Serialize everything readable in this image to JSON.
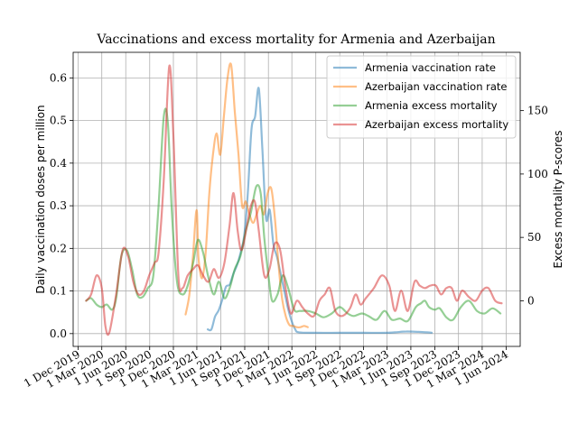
{
  "chart_data": {
    "type": "line",
    "title": "Vaccinations and excess mortality for Armenia and Azerbaijan",
    "ylabel": "Daily vaccination doses per million",
    "y2label": "Excess mortality P-scores",
    "xlim": [
      "2019-11-12",
      "2024-07-25"
    ],
    "ylim": [
      -0.03,
      0.66
    ],
    "y2lim": [
      -36,
      196
    ],
    "grid": true,
    "legend_position": "top-right",
    "x_ticks": [
      "2019-12-01",
      "2020-03-01",
      "2020-06-01",
      "2020-09-01",
      "2020-12-01",
      "2021-03-01",
      "2021-06-01",
      "2021-09-01",
      "2021-12-01",
      "2022-03-01",
      "2022-06-01",
      "2022-09-01",
      "2022-12-01",
      "2023-03-01",
      "2023-06-01",
      "2023-09-01",
      "2023-12-01",
      "2024-03-01",
      "2024-06-01"
    ],
    "x_tick_labels": [
      "1 Dec 2019",
      "1 Mar 2020",
      "1 Jun 2020",
      "1 Sep 2020",
      "1 Dec 2020",
      "1 Mar 2021",
      "1 Jun 2021",
      "1 Sep 2021",
      "1 Dec 2021",
      "1 Mar 2022",
      "1 Jun 2022",
      "1 Sep 2022",
      "1 Dec 2022",
      "1 Mar 2023",
      "1 Jun 2023",
      "1 Sep 2023",
      "1 Dec 2023",
      "1 Mar 2024",
      "1 Jun 2024"
    ],
    "y_ticks": [
      0.0,
      0.1,
      0.2,
      0.3,
      0.4,
      0.5,
      0.6
    ],
    "y_tick_labels": [
      "0.0",
      "0.1",
      "0.2",
      "0.3",
      "0.4",
      "0.5",
      "0.6"
    ],
    "y2_ticks": [
      0,
      50,
      100,
      150
    ],
    "y2_tick_labels": [
      "0",
      "50",
      "100",
      "150"
    ],
    "series": [
      {
        "name": "Armenia vaccination rate",
        "color": "#1f77b4",
        "axis": "left",
        "points": [
          [
            "2021-04-12",
            0.01
          ],
          [
            "2021-04-26",
            0.01
          ],
          [
            "2021-05-10",
            0.04
          ],
          [
            "2021-05-24",
            0.055
          ],
          [
            "2021-06-07",
            0.08
          ],
          [
            "2021-06-21",
            0.11
          ],
          [
            "2021-07-05",
            0.115
          ],
          [
            "2021-07-19",
            0.14
          ],
          [
            "2021-08-02",
            0.16
          ],
          [
            "2021-08-16",
            0.19
          ],
          [
            "2021-08-30",
            0.23
          ],
          [
            "2021-09-13",
            0.33
          ],
          [
            "2021-09-27",
            0.48
          ],
          [
            "2021-10-11",
            0.51
          ],
          [
            "2021-10-25",
            0.575
          ],
          [
            "2021-11-08",
            0.43
          ],
          [
            "2021-11-22",
            0.27
          ],
          [
            "2021-12-06",
            0.29
          ],
          [
            "2021-12-20",
            0.21
          ],
          [
            "2022-01-03",
            0.18
          ],
          [
            "2022-01-17",
            0.14
          ],
          [
            "2022-01-31",
            0.1
          ],
          [
            "2022-02-14",
            0.06
          ],
          [
            "2022-02-28",
            0.03
          ],
          [
            "2022-03-14",
            0.01
          ],
          [
            "2022-03-28",
            0.003
          ],
          [
            "2022-06-01",
            0.002
          ],
          [
            "2022-09-01",
            0.002
          ],
          [
            "2022-12-01",
            0.002
          ],
          [
            "2023-03-01",
            0.002
          ],
          [
            "2023-04-01",
            0.003
          ],
          [
            "2023-05-15",
            0.005
          ],
          [
            "2023-07-01",
            0.004
          ],
          [
            "2023-08-01",
            0.003
          ],
          [
            "2023-08-20",
            0.002
          ]
        ]
      },
      {
        "name": "Azerbaijan vaccination rate",
        "color": "#ff7f0e",
        "axis": "left",
        "points": [
          [
            "2021-01-17",
            0.045
          ],
          [
            "2021-01-31",
            0.09
          ],
          [
            "2021-02-14",
            0.18
          ],
          [
            "2021-02-28",
            0.29
          ],
          [
            "2021-03-07",
            0.18
          ],
          [
            "2021-03-21",
            0.13
          ],
          [
            "2021-04-04",
            0.19
          ],
          [
            "2021-04-18",
            0.33
          ],
          [
            "2021-05-02",
            0.42
          ],
          [
            "2021-05-16",
            0.47
          ],
          [
            "2021-05-30",
            0.42
          ],
          [
            "2021-06-13",
            0.51
          ],
          [
            "2021-06-27",
            0.6
          ],
          [
            "2021-07-11",
            0.63
          ],
          [
            "2021-07-25",
            0.52
          ],
          [
            "2021-08-08",
            0.42
          ],
          [
            "2021-08-22",
            0.3
          ],
          [
            "2021-09-05",
            0.31
          ],
          [
            "2021-09-19",
            0.28
          ],
          [
            "2021-10-03",
            0.26
          ],
          [
            "2021-10-17",
            0.28
          ],
          [
            "2021-10-31",
            0.3
          ],
          [
            "2021-11-14",
            0.28
          ],
          [
            "2021-11-28",
            0.33
          ],
          [
            "2021-12-12",
            0.34
          ],
          [
            "2021-12-26",
            0.27
          ],
          [
            "2022-01-09",
            0.16
          ],
          [
            "2022-01-23",
            0.08
          ],
          [
            "2022-02-06",
            0.04
          ],
          [
            "2022-02-20",
            0.02
          ],
          [
            "2022-03-06",
            0.018
          ],
          [
            "2022-03-20",
            0.015
          ],
          [
            "2022-04-03",
            0.015
          ],
          [
            "2022-04-17",
            0.018
          ],
          [
            "2022-05-01",
            0.015
          ]
        ]
      },
      {
        "name": "Armenia excess mortality",
        "color": "#2ca02c",
        "axis": "right",
        "points": [
          [
            "2020-01-01",
            0
          ],
          [
            "2020-01-20",
            2
          ],
          [
            "2020-02-10",
            -3
          ],
          [
            "2020-03-01",
            -5
          ],
          [
            "2020-03-20",
            -3
          ],
          [
            "2020-04-10",
            -7
          ],
          [
            "2020-04-25",
            2
          ],
          [
            "2020-05-15",
            35
          ],
          [
            "2020-06-05",
            40
          ],
          [
            "2020-06-25",
            25
          ],
          [
            "2020-07-15",
            5
          ],
          [
            "2020-08-05",
            3
          ],
          [
            "2020-08-25",
            10
          ],
          [
            "2020-09-15",
            20
          ],
          [
            "2020-10-05",
            75
          ],
          [
            "2020-10-25",
            145
          ],
          [
            "2020-11-10",
            140
          ],
          [
            "2020-11-25",
            70
          ],
          [
            "2020-12-15",
            15
          ],
          [
            "2021-01-05",
            5
          ],
          [
            "2021-01-25",
            12
          ],
          [
            "2021-02-15",
            30
          ],
          [
            "2021-03-05",
            48
          ],
          [
            "2021-03-25",
            38
          ],
          [
            "2021-04-15",
            18
          ],
          [
            "2021-05-05",
            5
          ],
          [
            "2021-05-25",
            15
          ],
          [
            "2021-06-15",
            2
          ],
          [
            "2021-07-05",
            10
          ],
          [
            "2021-07-25",
            25
          ],
          [
            "2021-08-15",
            35
          ],
          [
            "2021-09-05",
            55
          ],
          [
            "2021-09-25",
            70
          ],
          [
            "2021-10-15",
            90
          ],
          [
            "2021-11-01",
            85
          ],
          [
            "2021-11-15",
            50
          ],
          [
            "2021-12-01",
            20
          ],
          [
            "2021-12-15",
            0
          ],
          [
            "2022-01-05",
            5
          ],
          [
            "2022-01-25",
            20
          ],
          [
            "2022-02-15",
            10
          ],
          [
            "2022-03-10",
            -7
          ],
          [
            "2022-04-01",
            -8
          ],
          [
            "2022-05-01",
            -8
          ],
          [
            "2022-06-01",
            -10
          ],
          [
            "2022-07-01",
            -13
          ],
          [
            "2022-08-01",
            -10
          ],
          [
            "2022-09-01",
            -5
          ],
          [
            "2022-10-01",
            -10
          ],
          [
            "2022-10-25",
            -12
          ],
          [
            "2022-11-25",
            -10
          ],
          [
            "2022-12-20",
            -12
          ],
          [
            "2023-01-20",
            -15
          ],
          [
            "2023-02-20",
            -8
          ],
          [
            "2023-03-20",
            -15
          ],
          [
            "2023-04-20",
            -14
          ],
          [
            "2023-05-20",
            -16
          ],
          [
            "2023-06-20",
            -5
          ],
          [
            "2023-07-10",
            -2
          ],
          [
            "2023-07-25",
            0
          ],
          [
            "2023-08-10",
            -5
          ],
          [
            "2023-09-01",
            -7
          ],
          [
            "2023-09-20",
            -6
          ],
          [
            "2023-10-15",
            -13
          ],
          [
            "2023-11-10",
            -15
          ],
          [
            "2023-12-10",
            -5
          ],
          [
            "2024-01-10",
            0
          ],
          [
            "2024-02-10",
            -8
          ],
          [
            "2024-03-10",
            -10
          ],
          [
            "2024-04-10",
            -6
          ],
          [
            "2024-05-10",
            -10
          ]
        ]
      },
      {
        "name": "Azerbaijan excess mortality",
        "color": "#d62728",
        "axis": "right",
        "points": [
          [
            "2020-01-01",
            0
          ],
          [
            "2020-01-20",
            5
          ],
          [
            "2020-02-10",
            20
          ],
          [
            "2020-03-01",
            10
          ],
          [
            "2020-03-15",
            -20
          ],
          [
            "2020-03-30",
            -25
          ],
          [
            "2020-04-25",
            5
          ],
          [
            "2020-05-20",
            40
          ],
          [
            "2020-06-10",
            35
          ],
          [
            "2020-06-30",
            15
          ],
          [
            "2020-07-20",
            5
          ],
          [
            "2020-08-10",
            8
          ],
          [
            "2020-08-30",
            20
          ],
          [
            "2020-09-20",
            30
          ],
          [
            "2020-10-05",
            38
          ],
          [
            "2020-10-25",
            95
          ],
          [
            "2020-11-15",
            185
          ],
          [
            "2020-12-01",
            130
          ],
          [
            "2020-12-20",
            20
          ],
          [
            "2021-01-05",
            10
          ],
          [
            "2021-01-25",
            20
          ],
          [
            "2021-02-15",
            25
          ],
          [
            "2021-03-05",
            28
          ],
          [
            "2021-03-25",
            20
          ],
          [
            "2021-04-15",
            15
          ],
          [
            "2021-05-05",
            25
          ],
          [
            "2021-05-25",
            18
          ],
          [
            "2021-06-15",
            30
          ],
          [
            "2021-07-05",
            60
          ],
          [
            "2021-07-20",
            85
          ],
          [
            "2021-08-05",
            55
          ],
          [
            "2021-08-20",
            40
          ],
          [
            "2021-09-10",
            60
          ],
          [
            "2021-09-25",
            75
          ],
          [
            "2021-10-10",
            78
          ],
          [
            "2021-10-25",
            55
          ],
          [
            "2021-11-15",
            20
          ],
          [
            "2021-12-05",
            25
          ],
          [
            "2021-12-25",
            45
          ],
          [
            "2022-01-15",
            40
          ],
          [
            "2022-02-05",
            10
          ],
          [
            "2022-02-25",
            -10
          ],
          [
            "2022-03-20",
            0
          ],
          [
            "2022-04-10",
            -5
          ],
          [
            "2022-05-01",
            -10
          ],
          [
            "2022-05-25",
            -12
          ],
          [
            "2022-06-15",
            0
          ],
          [
            "2022-07-05",
            5
          ],
          [
            "2022-07-25",
            10
          ],
          [
            "2022-08-15",
            -8
          ],
          [
            "2022-09-10",
            -12
          ],
          [
            "2022-10-10",
            -6
          ],
          [
            "2022-11-01",
            5
          ],
          [
            "2022-11-20",
            -3
          ],
          [
            "2022-12-10",
            2
          ],
          [
            "2023-01-10",
            10
          ],
          [
            "2023-02-10",
            20
          ],
          [
            "2023-03-10",
            12
          ],
          [
            "2023-04-01",
            -8
          ],
          [
            "2023-04-25",
            8
          ],
          [
            "2023-05-20",
            -8
          ],
          [
            "2023-06-15",
            15
          ],
          [
            "2023-07-05",
            12
          ],
          [
            "2023-07-25",
            10
          ],
          [
            "2023-08-15",
            12
          ],
          [
            "2023-09-05",
            12
          ],
          [
            "2023-09-25",
            5
          ],
          [
            "2023-10-15",
            10
          ],
          [
            "2023-11-05",
            10
          ],
          [
            "2023-11-25",
            0
          ],
          [
            "2023-12-15",
            8
          ],
          [
            "2024-01-10",
            3
          ],
          [
            "2024-02-05",
            0
          ],
          [
            "2024-03-01",
            8
          ],
          [
            "2024-03-25",
            10
          ],
          [
            "2024-04-20",
            0
          ],
          [
            "2024-05-15",
            -2
          ]
        ]
      }
    ]
  }
}
